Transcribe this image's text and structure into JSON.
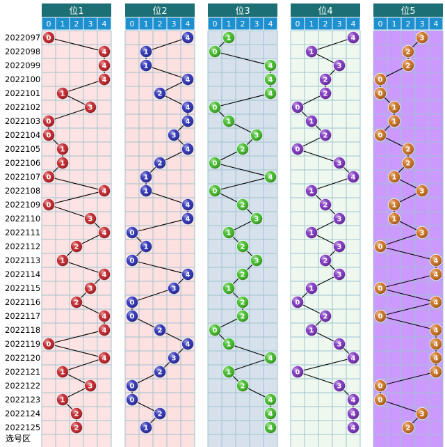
{
  "footer_label": "选号区",
  "chart_data": {
    "type": "scatter",
    "issues": [
      "2022097",
      "2022098",
      "2022099",
      "2022100",
      "2022101",
      "2022102",
      "2022103",
      "2022104",
      "2022105",
      "2022106",
      "2022107",
      "2022108",
      "2022109",
      "2022110",
      "2022111",
      "2022112",
      "2022113",
      "2022114",
      "2022115",
      "2022116",
      "2022117",
      "2022118",
      "2022119",
      "2022120",
      "2022121",
      "2022122",
      "2022123",
      "2022124",
      "2022125"
    ],
    "digits": [
      "0",
      "1",
      "2",
      "3",
      "4"
    ],
    "panels": [
      {
        "title": "位1",
        "ball_color": "#c21f25",
        "background": "#fde3e3",
        "values": [
          0,
          4,
          4,
          4,
          1,
          3,
          0,
          0,
          1,
          1,
          0,
          4,
          0,
          3,
          4,
          2,
          1,
          4,
          3,
          2,
          4,
          4,
          0,
          4,
          1,
          3,
          1,
          2,
          2
        ]
      },
      {
        "title": "位2",
        "ball_color": "#2a2db3",
        "background": "#fde0e0",
        "values": [
          4,
          1,
          1,
          4,
          2,
          4,
          4,
          3,
          4,
          2,
          1,
          1,
          4,
          4,
          0,
          1,
          0,
          4,
          3,
          0,
          0,
          2,
          4,
          3,
          2,
          0,
          0,
          2,
          1
        ]
      },
      {
        "title": "位3",
        "ball_color": "#3dbb24",
        "background": "#d6e1ec",
        "values": [
          1,
          0,
          4,
          4,
          4,
          0,
          1,
          3,
          2,
          0,
          4,
          0,
          2,
          3,
          1,
          2,
          3,
          2,
          1,
          2,
          2,
          0,
          1,
          4,
          1,
          2,
          4,
          4,
          4
        ]
      },
      {
        "title": "位4",
        "ball_color": "#7b2fbf",
        "background": "#eef8ef",
        "values": [
          4,
          1,
          3,
          2,
          2,
          0,
          1,
          2,
          0,
          3,
          4,
          1,
          2,
          3,
          1,
          3,
          2,
          3,
          1,
          0,
          2,
          1,
          3,
          4,
          0,
          3,
          4,
          4,
          4
        ]
      },
      {
        "title": "位5",
        "ball_color": "#cc6f1b",
        "background": "#cc99ff",
        "values": [
          3,
          2,
          2,
          0,
          0,
          1,
          1,
          0,
          2,
          2,
          1,
          3,
          1,
          1,
          3,
          0,
          4,
          4,
          0,
          4,
          0,
          4,
          4,
          4,
          4,
          0,
          0,
          3,
          2
        ]
      }
    ],
    "header_color": "#1c6f74",
    "digit_header_color": "#1e8fcf",
    "grid_line_color": "#9ec3cf"
  }
}
